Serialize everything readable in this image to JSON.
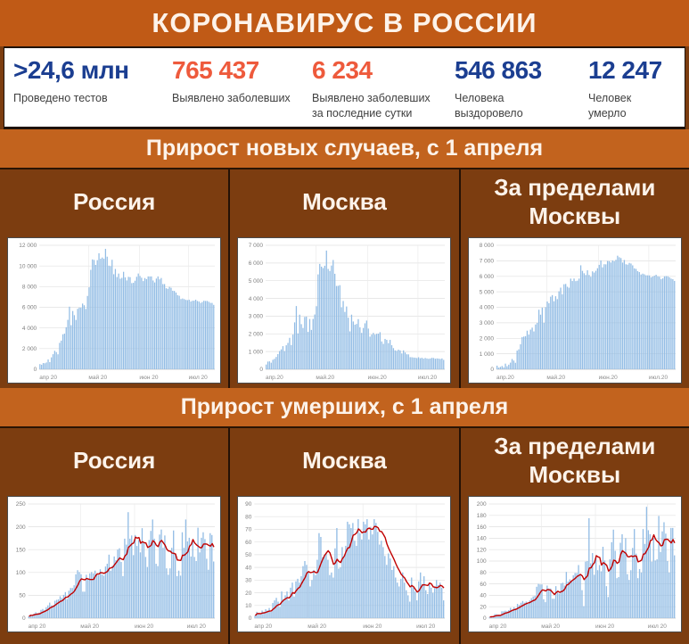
{
  "header": {
    "title": "КОРОНАВИРУС В РОССИИ"
  },
  "stats": [
    {
      "value": ">24,6 млн",
      "label": "Проведено тестов",
      "color": "#1b3e91"
    },
    {
      "value": "765 437",
      "label": "Выявлено заболевших",
      "color": "#ee5a3c"
    },
    {
      "value": "6 234",
      "label": "Выявлено заболевших за последние сутки",
      "color": "#ee5a3c"
    },
    {
      "value": "546 863",
      "label": "Человека выздоровело",
      "color": "#1b3e91"
    },
    {
      "value": "12 247",
      "label": "Человек умерло",
      "color": "#1b3e91"
    }
  ],
  "sections": [
    {
      "title": "Прирост новых случаев, с 1 апреля",
      "columns": [
        "Россия",
        "Москва",
        "За пределами Москвы"
      ]
    },
    {
      "title": "Прирост умерших, с 1 апреля",
      "columns": [
        "Россия",
        "Москва",
        "За пределами Москвы"
      ]
    }
  ],
  "colors": {
    "header_bg": "#c05a16",
    "band_bg": "#c2631e",
    "page_bg": "#7c3d10",
    "stat_navy": "#1b3e91",
    "stat_coral": "#ee5a3c",
    "bar_fill": "#93bde5",
    "trend_line": "#c00000",
    "grid": "#e0e0e0",
    "axis_text": "#7f7f7f"
  },
  "chart_data": [
    {
      "type": "bar",
      "title": "Россия",
      "section": "Прирост новых случаев, с 1 апреля",
      "x_labels": [
        "апр 20",
        "май 20",
        "июн 20",
        "июл 20"
      ],
      "x_positions": [
        0,
        30,
        61,
        91
      ],
      "ymax": 12000,
      "ystep": 2000,
      "trend_ma7": false,
      "values": [
        500,
        440,
        601,
        582,
        658,
        954,
        693,
        1154,
        1459,
        1786,
        1667,
        1448,
        2558,
        2774,
        3388,
        3448,
        4070,
        4785,
        6060,
        4268,
        5642,
        5236,
        4774,
        5849,
        5966,
        5953,
        6361,
        6198,
        5841,
        7099,
        7933,
        9623,
        10633,
        10581,
        10102,
        10559,
        11231,
        10699,
        10817,
        10698,
        11656,
        10899,
        10028,
        9974,
        10598,
        9200,
        9709,
        8926,
        9263,
        8764,
        8849,
        9434,
        8894,
        8599,
        8946,
        8915,
        8338,
        8371,
        8572,
        8952,
        9268,
        9035,
        8863,
        8536,
        8831,
        8726,
        8987,
        8984,
        8985,
        8595,
        8404,
        8779,
        8987,
        8706,
        8835,
        8246,
        8248,
        7843,
        7790,
        7972,
        7889,
        7600,
        7580,
        7425,
        7176,
        7113,
        6800,
        6852,
        6791,
        6719,
        6693,
        6735,
        6556,
        6632,
        6638,
        6736,
        6611,
        6562,
        6422,
        6509,
        6635,
        6611,
        6615,
        6537,
        6428,
        6422,
        6234
      ]
    },
    {
      "type": "bar",
      "title": "Москва",
      "section": "Прирост новых случаев, с 1 апреля",
      "x_labels": [
        "апр.20",
        "май.20",
        "июн.20",
        "июл.20"
      ],
      "x_positions": [
        0,
        30,
        61,
        91
      ],
      "ymax": 7000,
      "ystep": 1000,
      "trend_ma7": false,
      "values": [
        267,
        434,
        448,
        370,
        536,
        591,
        697,
        857,
        1030,
        1124,
        1306,
        1030,
        1355,
        1489,
        1774,
        1370,
        1959,
        2649,
        3570,
        2026,
        3083,
        2548,
        2332,
        2957,
        2971,
        2110,
        2838,
        2222,
        2840,
        3093,
        3561,
        5358,
        5948,
        5795,
        5714,
        5846,
        6703,
        5667,
        5551,
        5858,
        6169,
        5392,
        4703,
        4712,
        4748,
        3505,
        3855,
        3238,
        3545,
        2913,
        2140,
        3084,
        2699,
        2516,
        2560,
        2830,
        2367,
        2054,
        2332,
        2595,
        2749,
        2297,
        1842,
        1958,
        2054,
        1956,
        2001,
        2010,
        2095,
        1572,
        1436,
        1714,
        1659,
        1477,
        1659,
        1359,
        1195,
        1068,
        1040,
        1109,
        1065,
        894,
        1068,
        948,
        845,
        842,
        685,
        680,
        662,
        656,
        632,
        680,
        624,
        650,
        601,
        638,
        611,
        590,
        610,
        645,
        637,
        596,
        613,
        602,
        580,
        611,
        531
      ]
    },
    {
      "type": "bar",
      "title": "За пределами Москвы",
      "section": "Прирост новых случаев, с 1 апреля",
      "x_labels": [
        "апр.20",
        "май.20",
        "июн.20",
        "июл.20"
      ],
      "x_positions": [
        0,
        30,
        61,
        91
      ],
      "ymax": 8000,
      "ystep": 1000,
      "trend_ma7": false,
      "values": [
        233,
        106,
        153,
        212,
        122,
        363,
        196,
        297,
        429,
        662,
        561,
        418,
        1203,
        1285,
        1614,
        2078,
        2111,
        2136,
        2490,
        2242,
        2559,
        2688,
        2442,
        2892,
        2995,
        3843,
        3523,
        3976,
        3001,
        4006,
        4372,
        4265,
        4685,
        4786,
        4388,
        4713,
        4528,
        5032,
        5266,
        4840,
        5487,
        5507,
        5325,
        5262,
        5850,
        5695,
        5854,
        5688,
        5718,
        5851,
        6709,
        6350,
        6195,
        6083,
        6386,
        6085,
        5971,
        6317,
        6240,
        6357,
        6519,
        6738,
        7021,
        6578,
        6777,
        6770,
        6986,
        6974,
        6890,
        7023,
        6968,
        7065,
        7328,
        7229,
        7176,
        6887,
        7053,
        6775,
        6750,
        6863,
        6824,
        6706,
        6512,
        6477,
        6331,
        6271,
        6115,
        6172,
        6129,
        6063,
        6061,
        6055,
        5932,
        5982,
        6037,
        6098,
        6000,
        5972,
        5812,
        5864,
        5998,
        6015,
        6002,
        5935,
        5848,
        5811,
        5703
      ]
    },
    {
      "type": "bar",
      "title": "Россия",
      "section": "Прирост умерших, с 1 апреля",
      "x_labels": [
        "апр 20",
        "май 20",
        "июн 20",
        "июл 20"
      ],
      "x_positions": [
        0,
        30,
        61,
        91
      ],
      "ymax": 250,
      "ystep": 50,
      "trend_ma7": true,
      "values": [
        4,
        8,
        7,
        10,
        13,
        11,
        12,
        18,
        20,
        18,
        24,
        28,
        34,
        28,
        28,
        38,
        40,
        41,
        48,
        44,
        51,
        57,
        42,
        60,
        66,
        66,
        72,
        96,
        105,
        101,
        96,
        58,
        58,
        95,
        86,
        98,
        101,
        98,
        104,
        95,
        94,
        107,
        96,
        93,
        113,
        119,
        139,
        104,
        115,
        135,
        127,
        150,
        153,
        123,
        92,
        174,
        161,
        232,
        174,
        181,
        138,
        182,
        158,
        171,
        144,
        197,
        167,
        134,
        112,
        171,
        191,
        216,
        174,
        119,
        114,
        183,
        194,
        154,
        181,
        109,
        95,
        109,
        154,
        192,
        141,
        92,
        104,
        93,
        188,
        154,
        216,
        168,
        176,
        135,
        168,
        134,
        125,
        198,
        144,
        176,
        188,
        173,
        130,
        106,
        186,
        182,
        124
      ]
    },
    {
      "type": "bar",
      "title": "Москва",
      "section": "Прирост умерших, с 1 апреля",
      "x_labels": [
        "апр 20",
        "май 20",
        "июн 20",
        "июл 20"
      ],
      "x_positions": [
        0,
        30,
        61,
        91
      ],
      "ymax": 90,
      "ystep": 10,
      "trend_ma7": true,
      "values": [
        2,
        5,
        4,
        3,
        6,
        5,
        7,
        6,
        8,
        5,
        12,
        14,
        16,
        13,
        9,
        21,
        15,
        18,
        21,
        14,
        24,
        28,
        17,
        29,
        31,
        28,
        33,
        41,
        45,
        42,
        37,
        25,
        30,
        38,
        34,
        46,
        67,
        64,
        48,
        50,
        51,
        46,
        34,
        36,
        32,
        55,
        71,
        39,
        40,
        56,
        48,
        57,
        76,
        74,
        71,
        75,
        61,
        57,
        78,
        67,
        62,
        76,
        74,
        78,
        62,
        72,
        66,
        78,
        75,
        68,
        58,
        61,
        56,
        49,
        42,
        51,
        47,
        38,
        41,
        32,
        28,
        25,
        31,
        36,
        28,
        22,
        18,
        13,
        32,
        24,
        21,
        14,
        29,
        36,
        27,
        33,
        22,
        19,
        28,
        24,
        20,
        25,
        30,
        26,
        28,
        24,
        14
      ]
    },
    {
      "type": "bar",
      "title": "За пределами Москвы",
      "section": "Прирост умерших, с 1 апреля",
      "x_labels": [
        "апр 20",
        "май 20",
        "июн 20",
        "июл 20"
      ],
      "x_positions": [
        0,
        30,
        61,
        91
      ],
      "ymax": 200,
      "ystep": 20,
      "trend_ma7": true,
      "values": [
        2,
        3,
        3,
        7,
        7,
        6,
        5,
        12,
        12,
        13,
        12,
        14,
        18,
        15,
        19,
        17,
        25,
        23,
        27,
        30,
        27,
        29,
        25,
        31,
        35,
        38,
        39,
        55,
        60,
        59,
        59,
        33,
        28,
        57,
        52,
        52,
        34,
        34,
        56,
        45,
        43,
        61,
        62,
        57,
        81,
        64,
        68,
        65,
        75,
        79,
        79,
        93,
        77,
        49,
        21,
        99,
        100,
        175,
        96,
        114,
        76,
        106,
        84,
        93,
        82,
        125,
        101,
        56,
        37,
        103,
        133,
        155,
        118,
        70,
        72,
        132,
        147,
        116,
        140,
        77,
        67,
        84,
        123,
        156,
        113,
        70,
        86,
        80,
        156,
        130,
        195,
        154,
        147,
        99,
        141,
        101,
        103,
        179,
        116,
        152,
        168,
        148,
        100,
        80,
        158,
        158,
        110
      ]
    }
  ]
}
